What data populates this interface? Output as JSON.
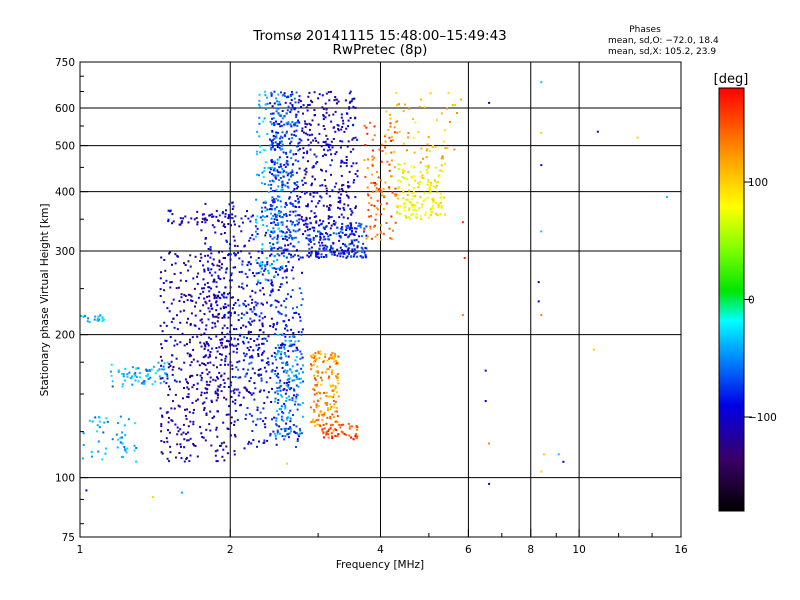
{
  "chart_data": {
    "type": "scatter",
    "title": "Tromsø 20141115 15:48:00–15:49:43",
    "subtitle": "RwPretec (8p)",
    "xlabel": "Frequency [MHz]",
    "ylabel": "Stationary phase Virtual Height [km]",
    "x_scale": "log",
    "y_scale": "log",
    "xlim": [
      1,
      16
    ],
    "ylim": [
      75,
      750
    ],
    "x_ticks": [
      1,
      2,
      4,
      6,
      8,
      10,
      16
    ],
    "x_tick_labels": [
      "1",
      "2",
      "4",
      "6",
      "8",
      "10",
      "16"
    ],
    "y_ticks": [
      75,
      100,
      200,
      300,
      400,
      500,
      600,
      750
    ],
    "y_tick_labels": [
      "75",
      "100",
      "200",
      "300",
      "400",
      "500",
      "600",
      "750"
    ],
    "grid": true,
    "stats": {
      "heading": "Phases",
      "line1": "mean, sd,O: −72.0, 18.4",
      "line2": "mean, sd,X: 105.2, 23.9"
    },
    "colorbar": {
      "label": "[deg]",
      "range": [
        -180,
        180
      ],
      "ticks": [
        100,
        0,
        -100
      ],
      "tick_labels": [
        "100",
        "0",
        "−100"
      ]
    },
    "clusters": [
      {
        "fmin": 1.45,
        "fmax": 2.05,
        "hmin": 108,
        "hmax": 300,
        "phase": -118,
        "n": 450
      },
      {
        "fmin": 1.75,
        "fmax": 2.6,
        "hmin": 150,
        "hmax": 380,
        "phase": -108,
        "n": 350
      },
      {
        "fmin": 2.05,
        "fmax": 2.8,
        "hmin": 115,
        "hmax": 300,
        "phase": -95,
        "n": 300
      },
      {
        "fmin": 2.45,
        "fmax": 2.8,
        "hmin": 120,
        "hmax": 200,
        "phase": -60,
        "n": 130
      },
      {
        "fmin": 2.4,
        "fmax": 2.75,
        "hmin": 290,
        "hmax": 650,
        "phase": -85,
        "n": 350
      },
      {
        "fmin": 2.75,
        "fmax": 3.6,
        "hmin": 290,
        "hmax": 650,
        "phase": -112,
        "n": 380
      },
      {
        "fmin": 2.85,
        "fmax": 3.75,
        "hmin": 290,
        "hmax": 345,
        "phase": -85,
        "n": 150
      },
      {
        "fmin": 2.25,
        "fmax": 2.55,
        "hmin": 260,
        "hmax": 650,
        "phase": -45,
        "n": 120
      },
      {
        "fmin": 2.9,
        "fmax": 3.3,
        "hmin": 128,
        "hmax": 185,
        "phase": 135,
        "n": 160
      },
      {
        "fmin": 3.05,
        "fmax": 3.6,
        "hmin": 120,
        "hmax": 130,
        "phase": 160,
        "n": 55
      },
      {
        "fmin": 4.3,
        "fmax": 5.4,
        "hmin": 350,
        "hmax": 460,
        "phase": 95,
        "n": 160
      },
      {
        "fmin": 3.7,
        "fmax": 4.3,
        "hmin": 315,
        "hmax": 560,
        "phase": 150,
        "n": 110
      },
      {
        "fmin": 4.0,
        "fmax": 5.8,
        "hmin": 460,
        "hmax": 650,
        "phase": 120,
        "n": 60
      },
      {
        "fmin": 1.15,
        "fmax": 1.5,
        "hmin": 155,
        "hmax": 175,
        "phase": -50,
        "n": 70
      },
      {
        "fmin": 1.0,
        "fmax": 1.3,
        "hmin": 108,
        "hmax": 135,
        "phase": -50,
        "n": 50
      },
      {
        "fmin": 1.0,
        "fmax": 1.12,
        "hmin": 212,
        "hmax": 220,
        "phase": -50,
        "n": 20
      },
      {
        "fmin": 1.5,
        "fmax": 2.0,
        "hmin": 340,
        "hmax": 365,
        "phase": -115,
        "n": 45
      }
    ],
    "sparse_points": [
      {
        "x": 6.6,
        "y": 615,
        "phase": -100
      },
      {
        "x": 6.5,
        "y": 168,
        "phase": -100
      },
      {
        "x": 6.5,
        "y": 145,
        "phase": -100
      },
      {
        "x": 6.6,
        "y": 118,
        "phase": 140
      },
      {
        "x": 6.6,
        "y": 97,
        "phase": -100
      },
      {
        "x": 8.4,
        "y": 680,
        "phase": -40
      },
      {
        "x": 8.4,
        "y": 532,
        "phase": 110
      },
      {
        "x": 8.4,
        "y": 455,
        "phase": -110
      },
      {
        "x": 8.4,
        "y": 330,
        "phase": -40
      },
      {
        "x": 8.3,
        "y": 258,
        "phase": -100
      },
      {
        "x": 8.3,
        "y": 235,
        "phase": -110
      },
      {
        "x": 8.4,
        "y": 220,
        "phase": 140
      },
      {
        "x": 8.5,
        "y": 112,
        "phase": 110
      },
      {
        "x": 8.4,
        "y": 103,
        "phase": 110
      },
      {
        "x": 9.1,
        "y": 112,
        "phase": -40
      },
      {
        "x": 9.3,
        "y": 108,
        "phase": -110
      },
      {
        "x": 10.9,
        "y": 535,
        "phase": -110
      },
      {
        "x": 10.7,
        "y": 186,
        "phase": 110
      },
      {
        "x": 13.1,
        "y": 520,
        "phase": 110
      },
      {
        "x": 15.0,
        "y": 390,
        "phase": -40
      },
      {
        "x": 5.85,
        "y": 345,
        "phase": 170
      },
      {
        "x": 5.9,
        "y": 290,
        "phase": 170
      },
      {
        "x": 5.85,
        "y": 220,
        "phase": 140
      },
      {
        "x": 2.6,
        "y": 107,
        "phase": 110
      },
      {
        "x": 1.4,
        "y": 91,
        "phase": 110
      },
      {
        "x": 1.03,
        "y": 94,
        "phase": -100
      },
      {
        "x": 1.6,
        "y": 93,
        "phase": -50
      }
    ]
  }
}
